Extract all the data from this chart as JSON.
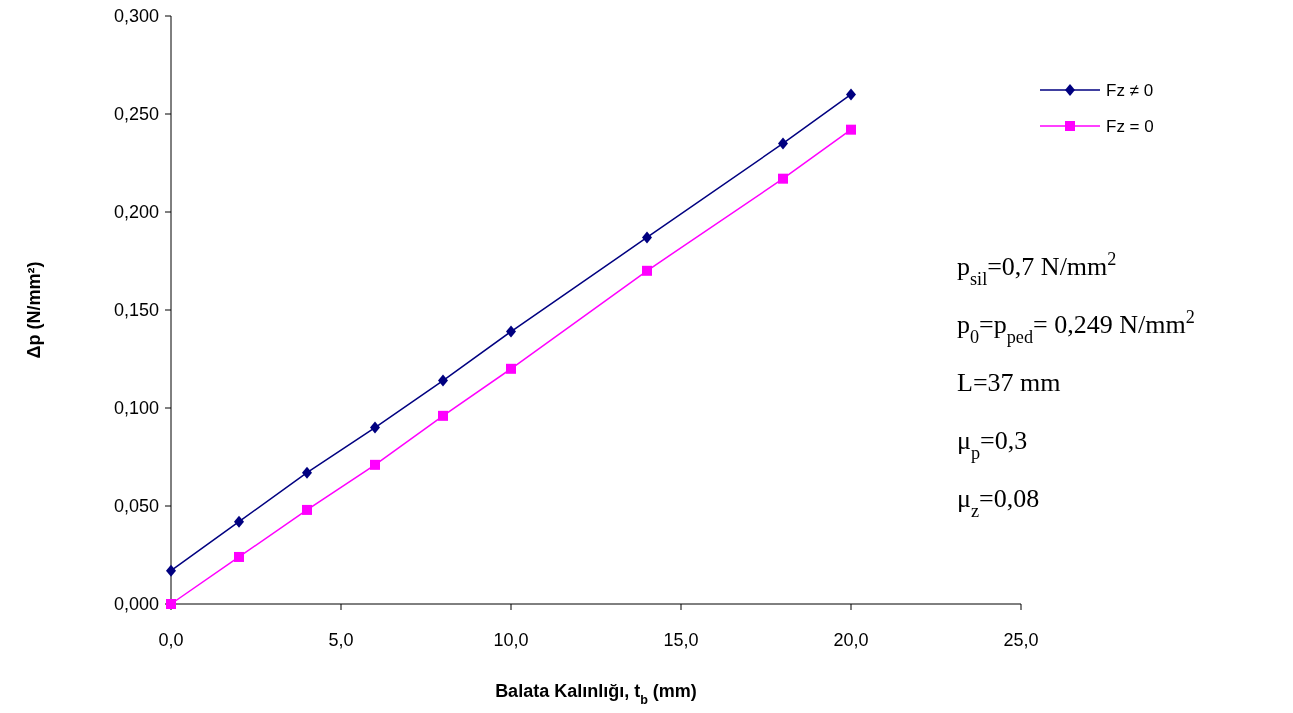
{
  "chart_data": {
    "type": "line",
    "xlabel": "Balata Kalınlığı, t$_{b}$ (mm)",
    "ylabel": "Δp (N/mm²)",
    "xlim": [
      0,
      25
    ],
    "xticks": [
      {
        "value": 0,
        "label": "0,0"
      },
      {
        "value": 5,
        "label": "5,0"
      },
      {
        "value": 10,
        "label": "10,0"
      },
      {
        "value": 15,
        "label": "15,0"
      },
      {
        "value": 20,
        "label": "20,0"
      },
      {
        "value": 25,
        "label": "25,0"
      }
    ],
    "ylim": [
      0,
      0.3
    ],
    "yticks": [
      {
        "value": 0,
        "label": "0,000"
      },
      {
        "value": 0.05,
        "label": "0,050"
      },
      {
        "value": 0.1,
        "label": "0,100"
      },
      {
        "value": 0.15,
        "label": "0,150"
      },
      {
        "value": 0.2,
        "label": "0,200"
      },
      {
        "value": 0.25,
        "label": "0,250"
      },
      {
        "value": 0.3,
        "label": "0,300"
      }
    ],
    "x": [
      0,
      2,
      4,
      6,
      8,
      10,
      14,
      18,
      20
    ],
    "series": [
      {
        "name": "Fz ≠ 0",
        "color": "#000080",
        "marker": "diamond",
        "values": [
          0.017,
          0.042,
          0.067,
          0.09,
          0.114,
          0.139,
          0.187,
          0.235,
          0.26
        ]
      },
      {
        "name": "Fz = 0",
        "color": "#ff00ff",
        "marker": "square",
        "values": [
          0,
          0.024,
          0.048,
          0.071,
          0.096,
          0.12,
          0.17,
          0.217,
          0.242
        ]
      }
    ],
    "legend": "right",
    "grid": false,
    "line_style": "solid",
    "annotations": [
      "p$_{sil}$=0,7 N/mm$^{2}$",
      "p$_{0}$=p$_{ped}$= 0,249 N/mm$^{2}$",
      "L=37 mm",
      "μ$_{p}$=0,3",
      "μ$_{z}$=0,08"
    ]
  }
}
